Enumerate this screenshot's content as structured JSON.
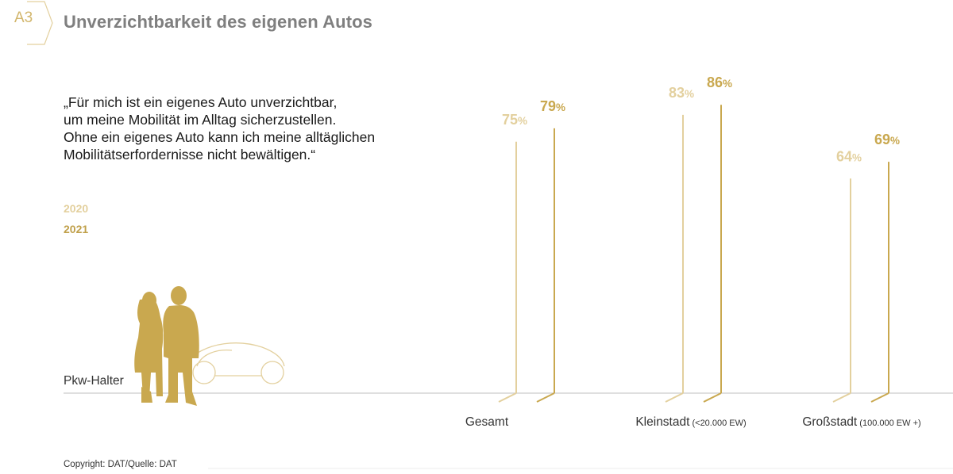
{
  "header": {
    "badge": "A3",
    "title": "Unverzichtbarkeit des eigenen Autos"
  },
  "quote": {
    "lines": [
      "„Für mich ist ein eigenes Auto unverzichtbar,",
      "um meine Mobilität im Alltag sicherzustellen.",
      "Ohne ein eigenes Auto kann ich meine alltäglichen",
      "Mobilitätserfordernisse nicht bewältigen.“"
    ]
  },
  "legend": {
    "y2020": "2020",
    "y2021": "2021"
  },
  "baseline_label": "Pkw-Halter",
  "copyright": "Copyright: DAT/Quelle: DAT",
  "colors": {
    "s2020": "#e3d09e",
    "s2021": "#c9a84f",
    "title": "#7f7f7f",
    "badge": "#d2b66c",
    "baseline": "#cccccc"
  },
  "icons": {
    "people": "people-car-silhouette-icon"
  },
  "chart_data": {
    "type": "bar",
    "categories": [
      {
        "name": "Gesamt",
        "note": ""
      },
      {
        "name": "Kleinstadt",
        "note": "(<20.000 EW)"
      },
      {
        "name": "Großstadt",
        "note": "(100.000 EW +)"
      }
    ],
    "series": [
      {
        "name": "2020",
        "values": [
          75,
          83,
          64
        ],
        "labels": [
          "75",
          "83",
          "64"
        ]
      },
      {
        "name": "2021",
        "values": [
          79,
          86,
          69
        ],
        "labels": [
          "79",
          "86",
          "69"
        ]
      }
    ],
    "unit": "%",
    "ylim": [
      0,
      100
    ],
    "title": "",
    "xlabel": "",
    "ylabel": ""
  }
}
